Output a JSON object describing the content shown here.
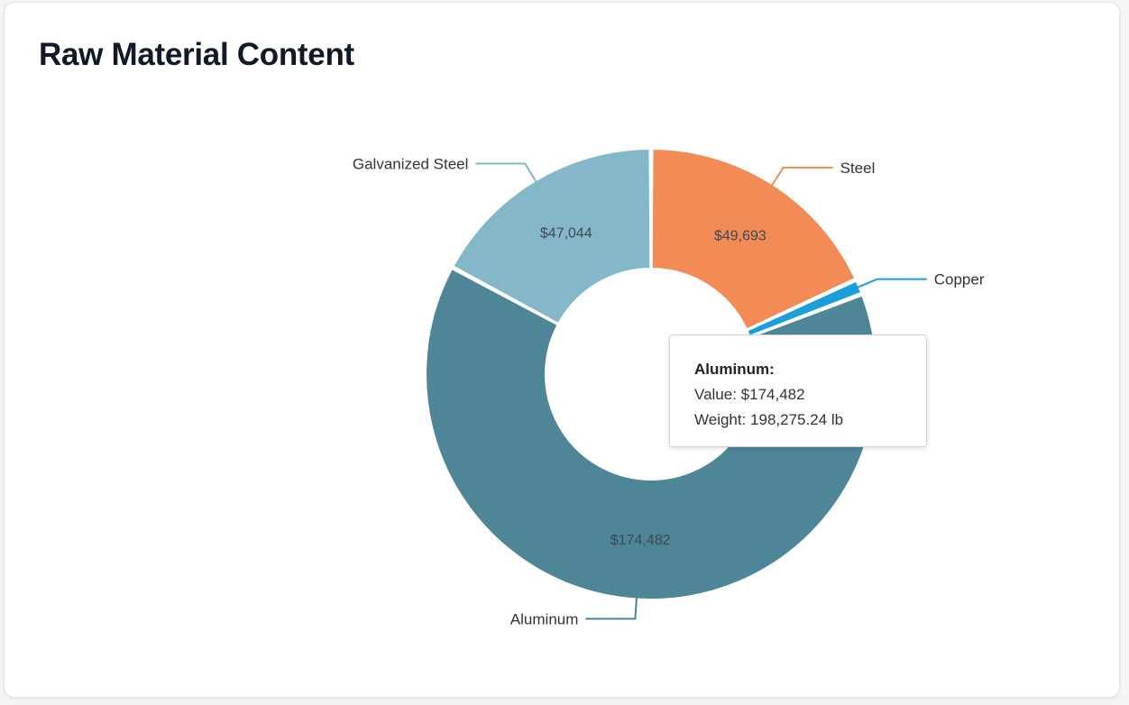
{
  "card": {
    "title": "Raw Material Content"
  },
  "chart_data": {
    "type": "pie",
    "donut": true,
    "slices": [
      {
        "label": "Steel",
        "value": 49693,
        "value_label": "$49,693",
        "color": "#f28b55",
        "label_side": "right"
      },
      {
        "label": "Copper",
        "value": 3000,
        "value_label": "",
        "color": "#1a9fd9",
        "label_side": "right"
      },
      {
        "label": "Aluminum",
        "value": 174482,
        "value_label": "$174,482",
        "color": "#4e8597",
        "label_side": "left"
      },
      {
        "label": "Galvanized Steel",
        "value": 47044,
        "value_label": "$47,044",
        "color": "#84b8c9",
        "label_side": "left"
      }
    ],
    "tooltip": {
      "title": "Aluminum:",
      "value_line": "Value: $174,482",
      "weight_line": "Weight: 198,275.24 lb"
    }
  }
}
